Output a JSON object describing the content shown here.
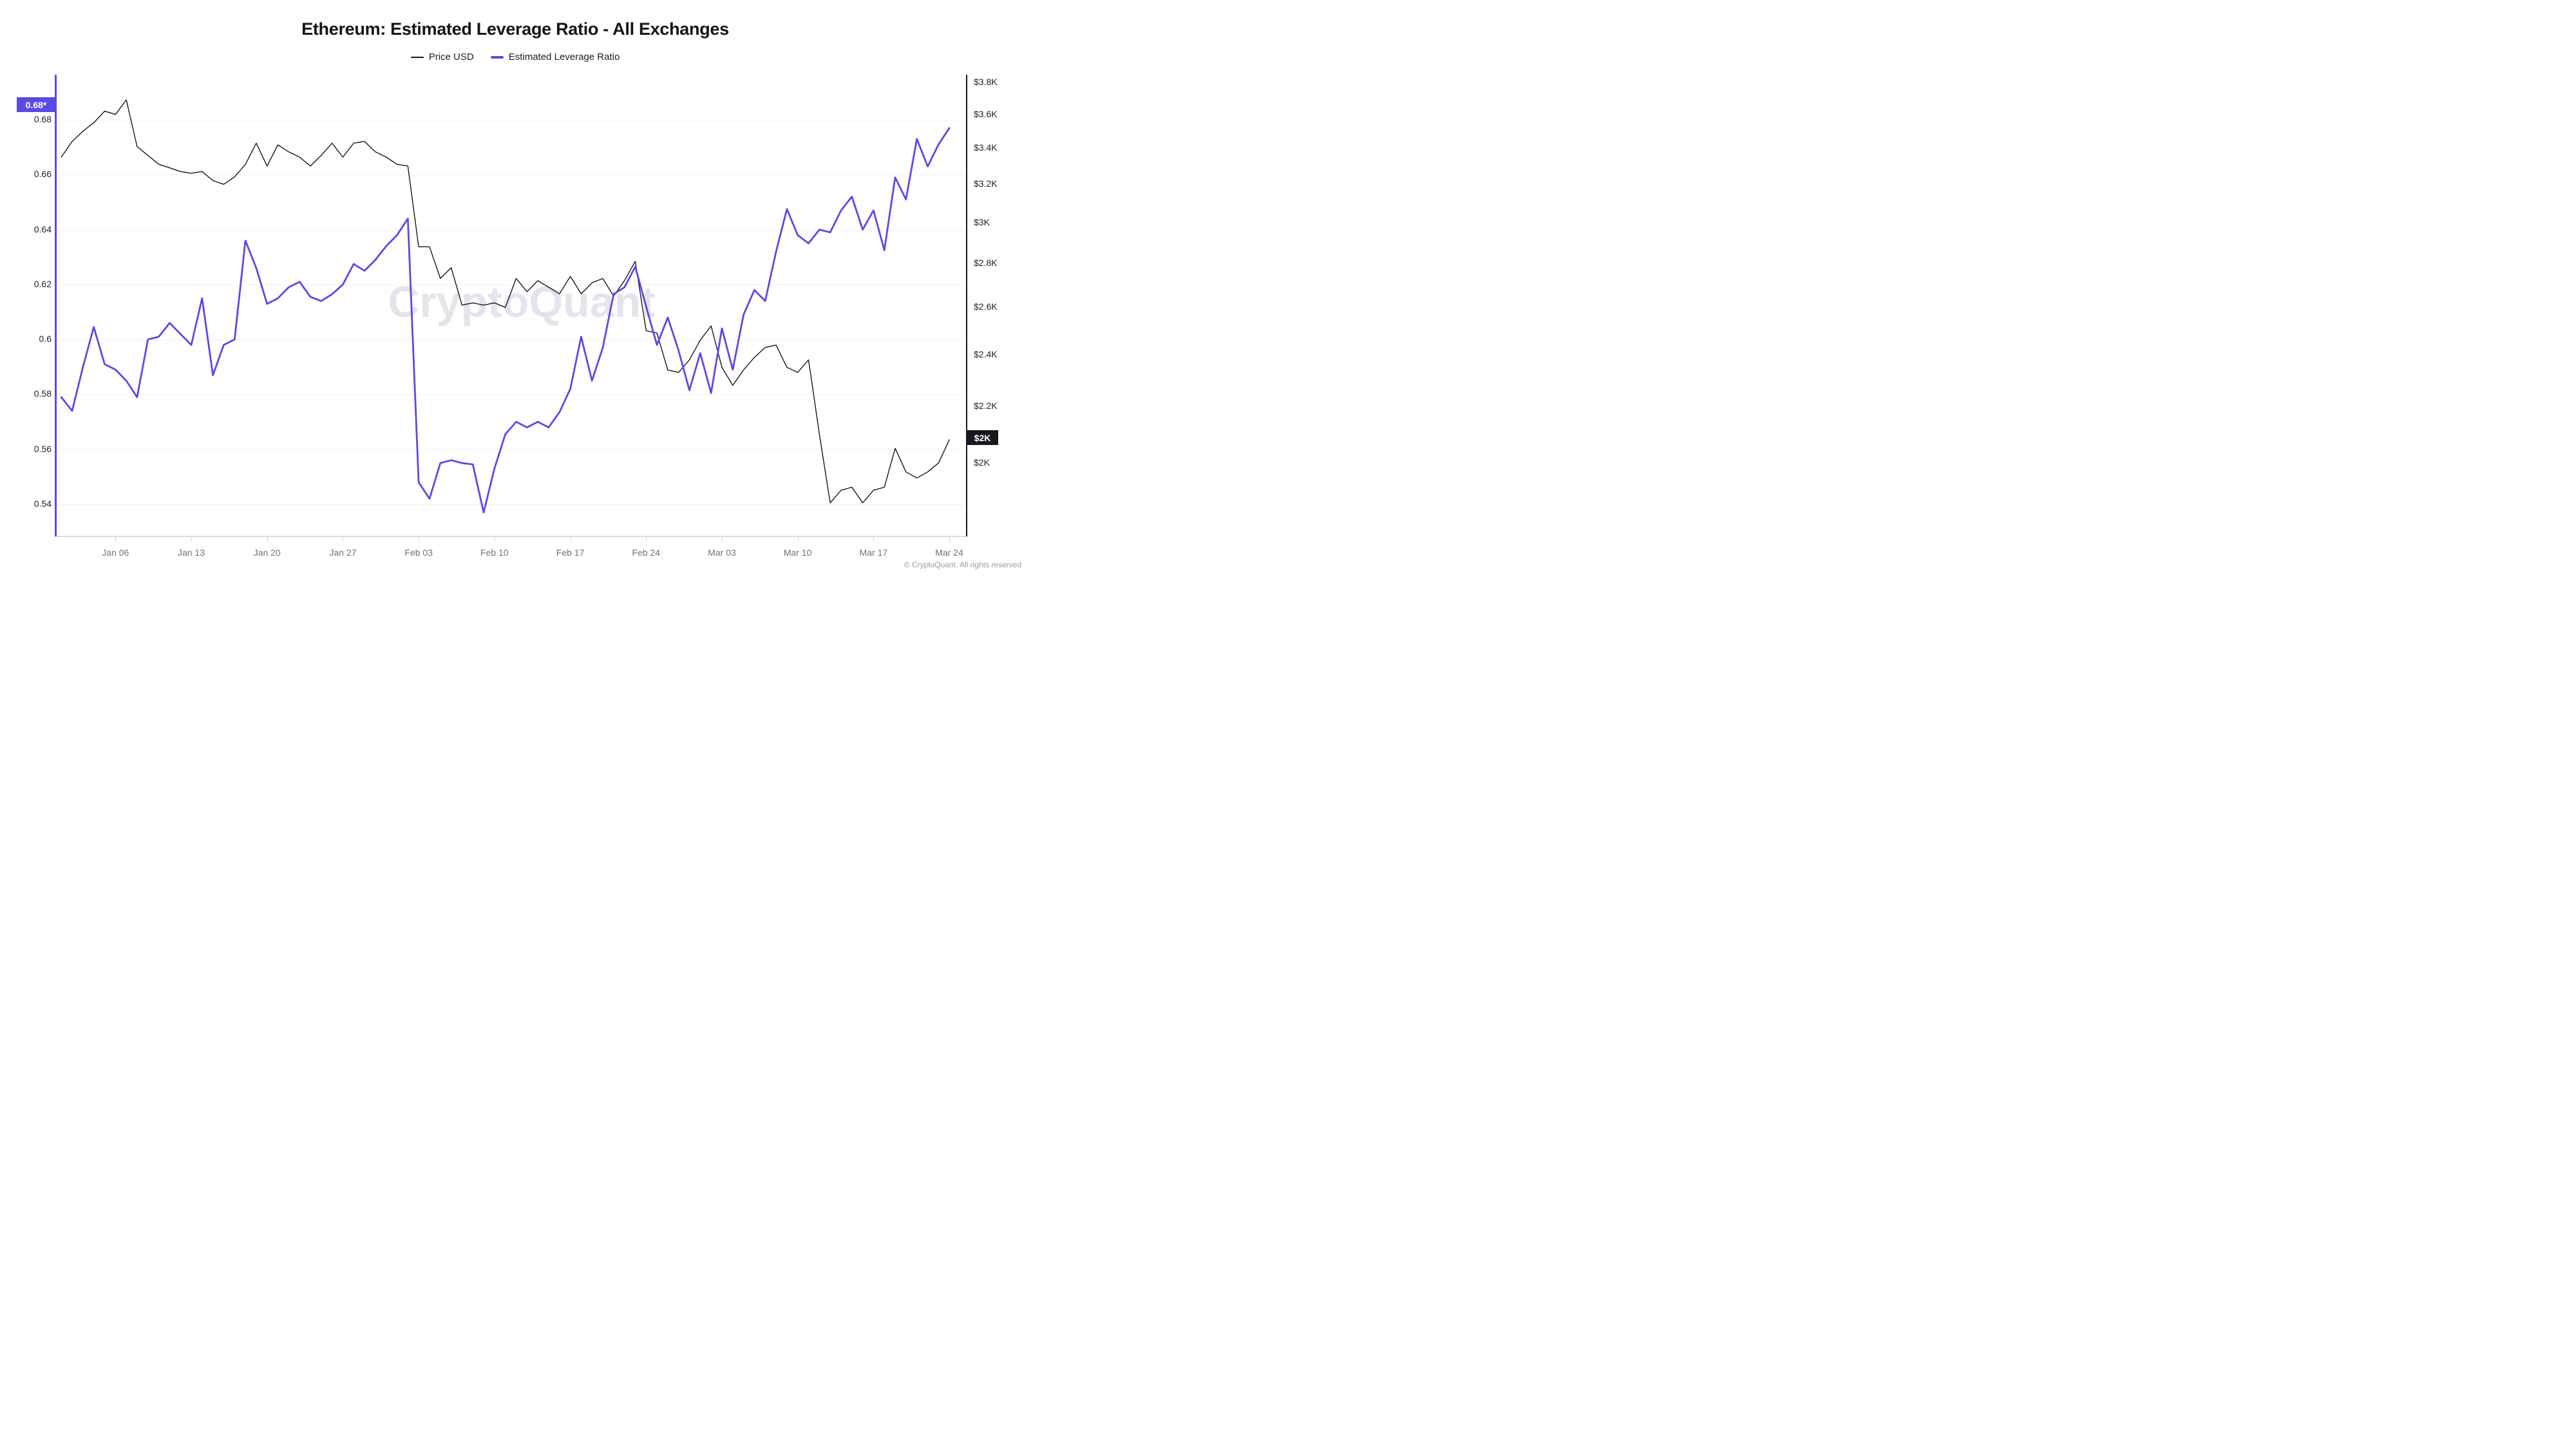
{
  "title": "Ethereum: Estimated Leverage Ratio - All Exchanges",
  "watermark": "CryptoQuant",
  "footer": "© CryptoQuant. All rights reserved",
  "badges": {
    "left_latest": "0.68*",
    "right_latest": "$2K"
  },
  "colors": {
    "price_line": "#17171d",
    "elr_line": "#5b4ae4",
    "left_axis": "#5b4ae4",
    "right_axis": "#17171d",
    "gridline": "#f1f1f4",
    "x_label": "#70707c",
    "watermark": "#e4e4ec",
    "badge_elr_bg": "#5b4ae4",
    "badge_price_bg": "#17171d"
  },
  "chart_data": {
    "type": "line",
    "title": "Ethereum: Estimated Leverage Ratio - All Exchanges",
    "legend_position": "top",
    "grid": "horizontal-only",
    "x": {
      "unit": "date",
      "tick_labels": [
        "Jan 06",
        "Jan 13",
        "Jan 20",
        "Jan 27",
        "Feb 03",
        "Feb 10",
        "Feb 17",
        "Feb 24",
        "Mar 03",
        "Mar 10",
        "Mar 17",
        "Mar 24"
      ],
      "tick_day_index": [
        5,
        12,
        19,
        26,
        33,
        40,
        47,
        54,
        61,
        68,
        75,
        82
      ],
      "dates": [
        "Jan 01",
        "Jan 02",
        "Jan 03",
        "Jan 04",
        "Jan 05",
        "Jan 06",
        "Jan 07",
        "Jan 08",
        "Jan 09",
        "Jan 10",
        "Jan 11",
        "Jan 12",
        "Jan 13",
        "Jan 14",
        "Jan 15",
        "Jan 16",
        "Jan 17",
        "Jan 18",
        "Jan 19",
        "Jan 20",
        "Jan 21",
        "Jan 22",
        "Jan 23",
        "Jan 24",
        "Jan 25",
        "Jan 26",
        "Jan 27",
        "Jan 28",
        "Jan 29",
        "Jan 30",
        "Jan 31",
        "Feb 01",
        "Feb 02",
        "Feb 03",
        "Feb 04",
        "Feb 05",
        "Feb 06",
        "Feb 07",
        "Feb 08",
        "Feb 09",
        "Feb 10",
        "Feb 11",
        "Feb 12",
        "Feb 13",
        "Feb 14",
        "Feb 15",
        "Feb 16",
        "Feb 17",
        "Feb 18",
        "Feb 19",
        "Feb 20",
        "Feb 21",
        "Feb 22",
        "Feb 23",
        "Feb 24",
        "Feb 25",
        "Feb 26",
        "Feb 27",
        "Feb 28",
        "Mar 01",
        "Mar 02",
        "Mar 03",
        "Mar 04",
        "Mar 05",
        "Mar 06",
        "Mar 07",
        "Mar 08",
        "Mar 09",
        "Mar 10",
        "Mar 11",
        "Mar 12",
        "Mar 13",
        "Mar 14",
        "Mar 15",
        "Mar 16",
        "Mar 17",
        "Mar 18",
        "Mar 19",
        "Mar 20",
        "Mar 21",
        "Mar 22",
        "Mar 23",
        "Mar 24"
      ]
    },
    "axes": {
      "left": {
        "scale": "linear",
        "range": [
          0.528,
          0.696
        ],
        "tick_labels": [
          "0.68",
          "0.66",
          "0.64",
          "0.62",
          "0.6",
          "0.58",
          "0.56",
          "0.54"
        ],
        "tick_values": [
          0.68,
          0.66,
          0.64,
          0.62,
          0.6,
          0.58,
          0.56,
          0.54
        ],
        "series": "Estimated Leverage Ratio",
        "latest_value": 0.68
      },
      "right": {
        "scale": "log",
        "unit": "USD",
        "range_k": [
          1.78,
          3.85
        ],
        "tick_labels": [
          "$3.8K",
          "$3.6K",
          "$3.4K",
          "$3.2K",
          "$3K",
          "$2.8K",
          "$2.6K",
          "$2.4K",
          "$2.2K",
          "$2K"
        ],
        "tick_values_k": [
          3.8,
          3.6,
          3.4,
          3.2,
          3.0,
          2.8,
          2.6,
          2.4,
          2.2,
          2.0
        ],
        "series": "Price USD",
        "latest_value_k": 2.08
      }
    },
    "series": [
      {
        "name": "Price USD",
        "axis": "right",
        "color": "#17171d",
        "unit": "USD_thousands",
        "values": [
          3.35,
          3.44,
          3.5,
          3.55,
          3.62,
          3.6,
          3.69,
          3.41,
          3.36,
          3.31,
          3.29,
          3.27,
          3.26,
          3.27,
          3.22,
          3.2,
          3.24,
          3.31,
          3.43,
          3.3,
          3.42,
          3.38,
          3.35,
          3.3,
          3.36,
          3.43,
          3.35,
          3.43,
          3.44,
          3.38,
          3.35,
          3.31,
          3.3,
          2.88,
          2.88,
          2.73,
          2.78,
          2.61,
          2.62,
          2.61,
          2.62,
          2.6,
          2.73,
          2.67,
          2.72,
          2.69,
          2.66,
          2.74,
          2.66,
          2.71,
          2.73,
          2.65,
          2.72,
          2.81,
          2.5,
          2.49,
          2.34,
          2.33,
          2.38,
          2.46,
          2.52,
          2.35,
          2.28,
          2.34,
          2.39,
          2.43,
          2.44,
          2.35,
          2.33,
          2.38,
          2.1,
          1.87,
          1.91,
          1.92,
          1.87,
          1.91,
          1.92,
          2.05,
          1.97,
          1.95,
          1.97,
          2.0,
          2.08
        ]
      },
      {
        "name": "Estimated Leverage Ratio",
        "axis": "left",
        "color": "#5b4ae4",
        "unit": "ratio",
        "values": [
          0.579,
          0.574,
          0.59,
          0.6045,
          0.591,
          0.589,
          0.585,
          0.579,
          0.6,
          0.601,
          0.606,
          0.602,
          0.598,
          0.615,
          0.587,
          0.598,
          0.6,
          0.636,
          0.626,
          0.613,
          0.615,
          0.619,
          0.621,
          0.6155,
          0.614,
          0.6165,
          0.62,
          0.6275,
          0.625,
          0.629,
          0.634,
          0.638,
          0.644,
          0.548,
          0.542,
          0.555,
          0.556,
          0.555,
          0.5545,
          0.537,
          0.553,
          0.5655,
          0.57,
          0.568,
          0.57,
          0.568,
          0.5735,
          0.582,
          0.601,
          0.585,
          0.597,
          0.6165,
          0.619,
          0.6265,
          0.612,
          0.598,
          0.608,
          0.596,
          0.5815,
          0.595,
          0.5805,
          0.604,
          0.589,
          0.609,
          0.618,
          0.614,
          0.632,
          0.6475,
          0.638,
          0.635,
          0.64,
          0.639,
          0.647,
          0.652,
          0.64,
          0.647,
          0.6325,
          0.659,
          0.651,
          0.673,
          0.663,
          0.671,
          0.677
        ]
      }
    ]
  }
}
